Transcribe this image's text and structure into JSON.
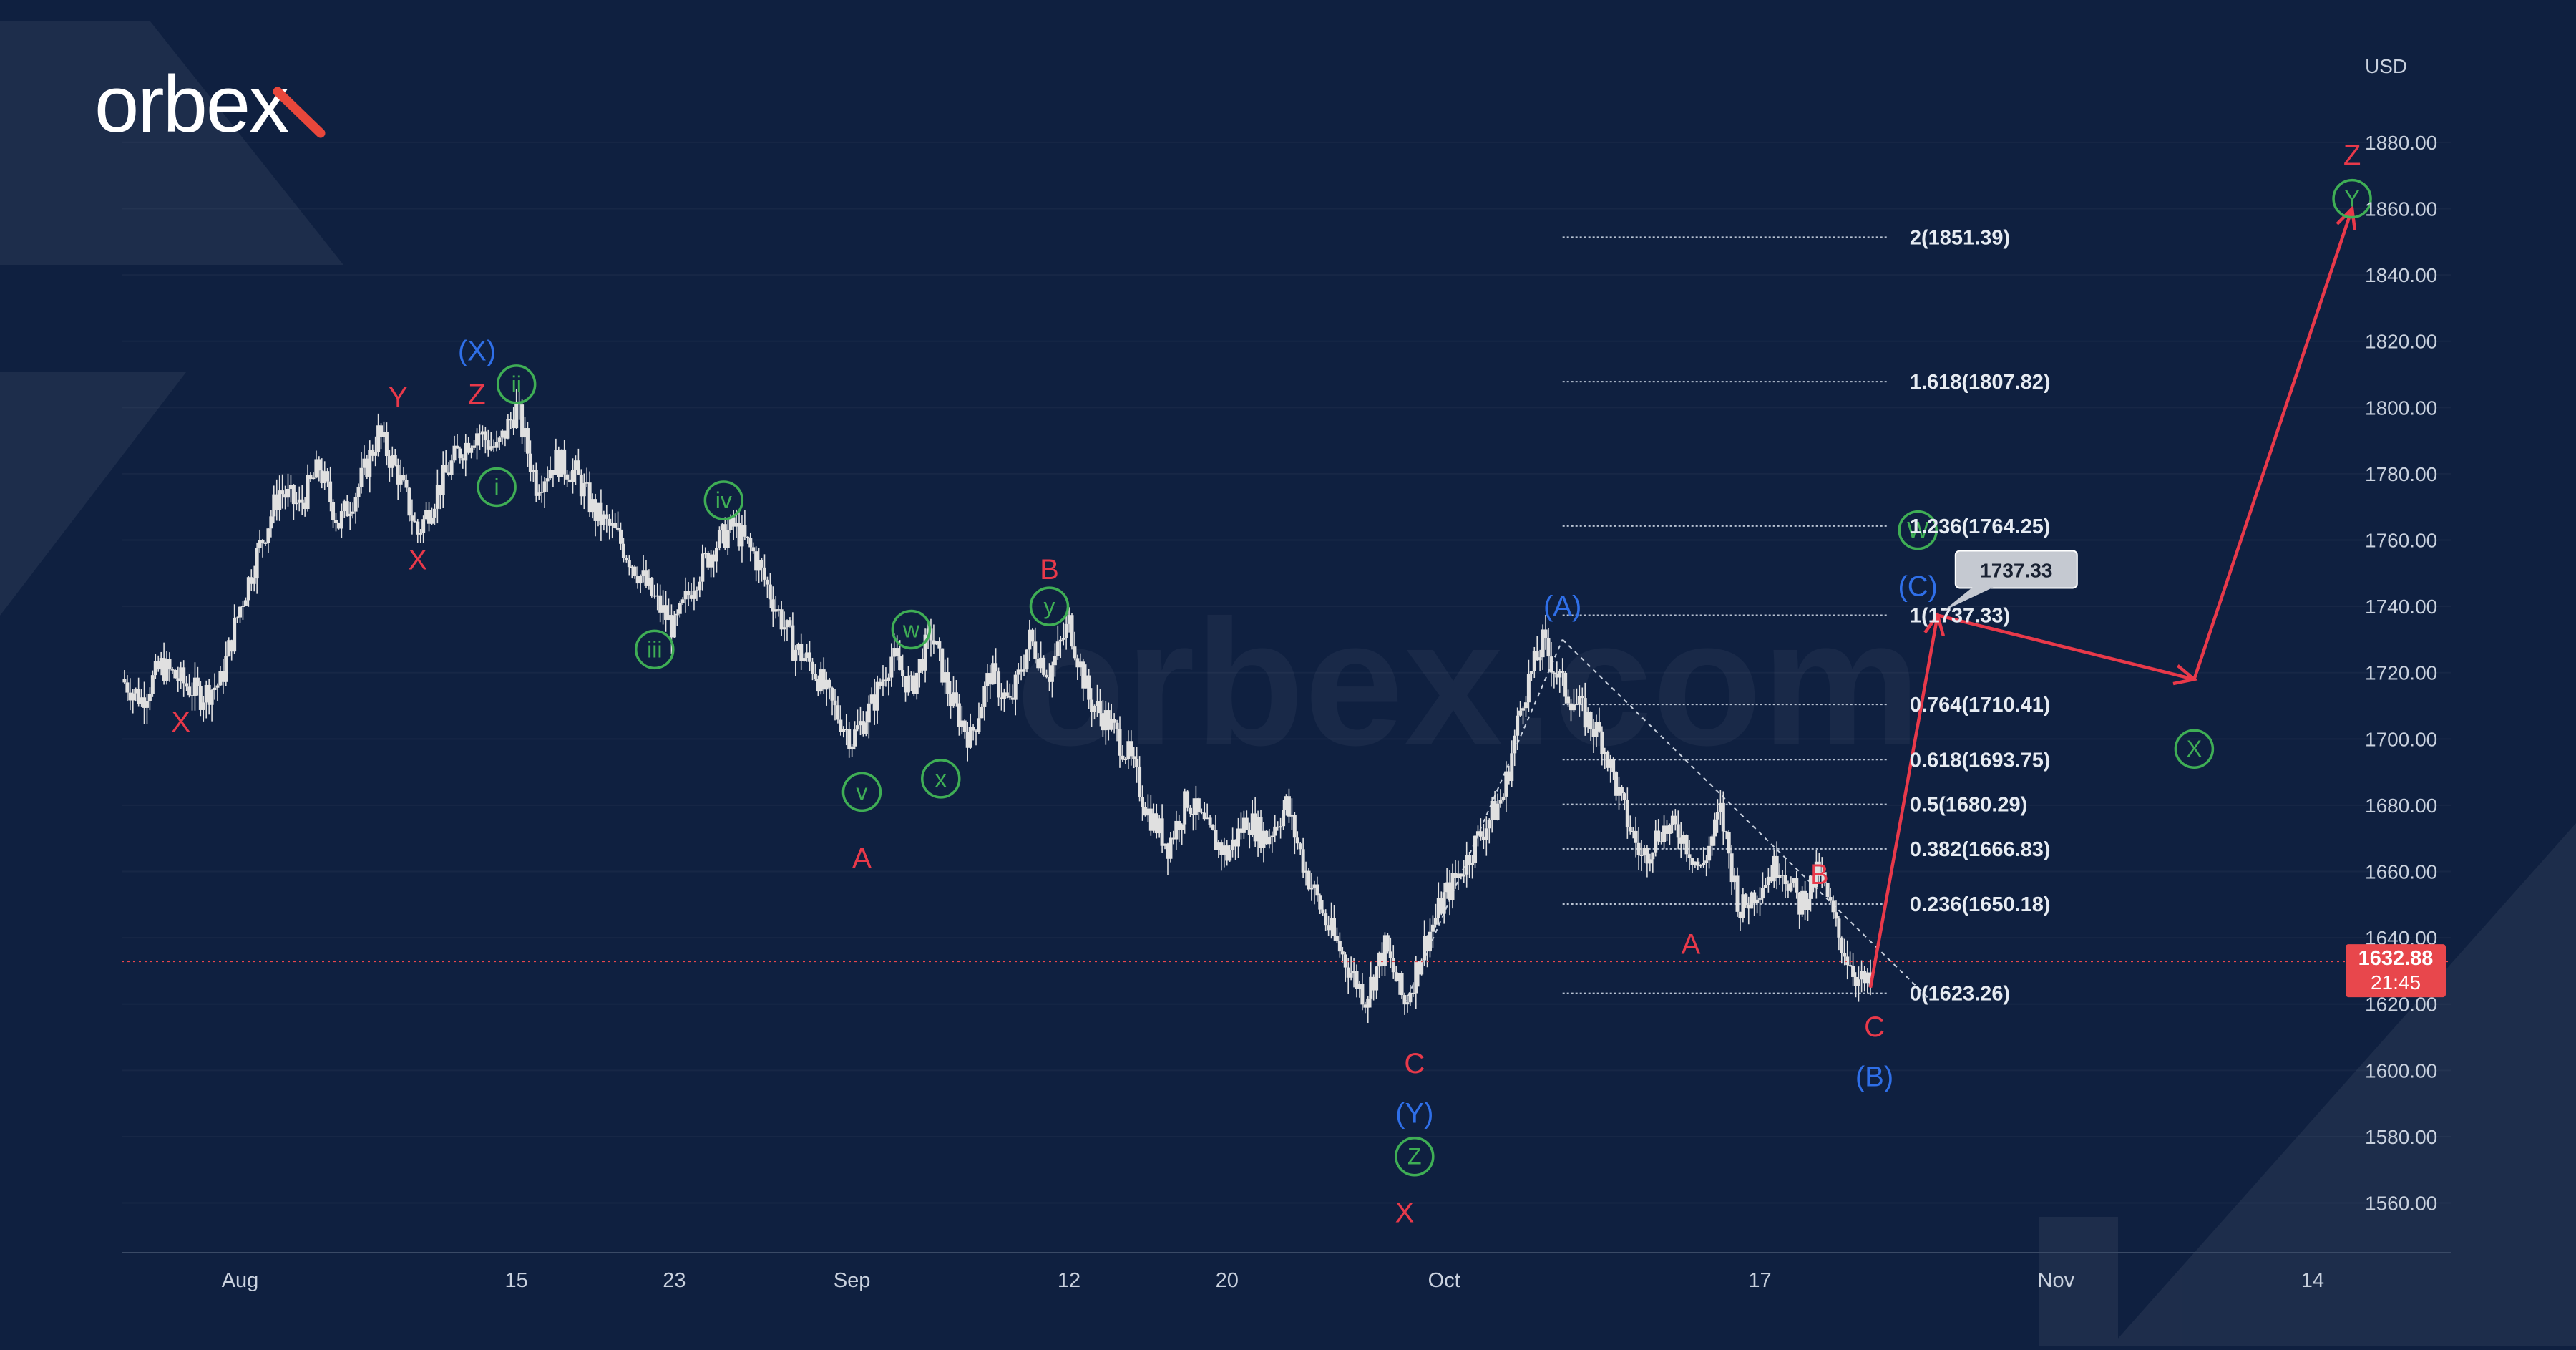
{
  "brand": {
    "logo_text": "orbex",
    "watermark_text": "orbex.com",
    "accent_color": "#e8473b"
  },
  "colors": {
    "background": "#0f2040",
    "candle": "#e0e0e0",
    "wave_red": "#e8394a",
    "wave_green": "#3fae55",
    "wave_blue": "#2f6fe8",
    "projection": "#e8394a",
    "fib_line": "#b8c2d2",
    "price_tag": "#e8474c"
  },
  "chart_data": {
    "type": "candlestick",
    "title": "",
    "currency_label": "USD",
    "y_tick_labels": [
      "1560.00",
      "1580.00",
      "1600.00",
      "1620.00",
      "1640.00",
      "1660.00",
      "1680.00",
      "1700.00",
      "1720.00",
      "1740.00",
      "1760.00",
      "1780.00",
      "1800.00",
      "1820.00",
      "1840.00",
      "1860.00",
      "1880.00"
    ],
    "ylim": [
      1545,
      1910
    ],
    "x_tick_labels": [
      {
        "label": "Aug",
        "day": 1
      },
      {
        "label": "15",
        "day": 15
      },
      {
        "label": "23",
        "day": 23
      },
      {
        "label": "Sep",
        "day": 32
      },
      {
        "label": "12",
        "day": 43
      },
      {
        "label": "20",
        "day": 51
      },
      {
        "label": "Oct",
        "day": 62
      },
      {
        "label": "17",
        "day": 78
      },
      {
        "label": "Nov",
        "day": 93
      },
      {
        "label": "14",
        "day": 106
      }
    ],
    "xlim": [
      -5,
      113
    ],
    "current_price": {
      "value": 1632.88,
      "label": "1632.88",
      "countdown": "21:45"
    },
    "price_path": [
      [
        -5,
        1718
      ],
      [
        -4,
        1712
      ],
      [
        -3,
        1722
      ],
      [
        -1,
        1713
      ],
      [
        0,
        1717
      ],
      [
        1,
        1740
      ],
      [
        2,
        1758
      ],
      [
        3,
        1775
      ],
      [
        4,
        1770
      ],
      [
        5,
        1782
      ],
      [
        6,
        1765
      ],
      [
        7,
        1776
      ],
      [
        8,
        1792
      ],
      [
        9,
        1780
      ],
      [
        10,
        1762
      ],
      [
        11,
        1775
      ],
      [
        12,
        1786
      ],
      [
        13,
        1793
      ],
      [
        14,
        1787
      ],
      [
        15,
        1800
      ],
      [
        16,
        1777
      ],
      [
        17,
        1784
      ],
      [
        18,
        1780
      ],
      [
        19,
        1768
      ],
      [
        20,
        1762
      ],
      [
        21,
        1752
      ],
      [
        22,
        1742
      ],
      [
        23,
        1733
      ],
      [
        24,
        1748
      ],
      [
        25,
        1758
      ],
      [
        26,
        1764
      ],
      [
        27,
        1756
      ],
      [
        28,
        1742
      ],
      [
        29,
        1728
      ],
      [
        30,
        1722
      ],
      [
        31,
        1710
      ],
      [
        32,
        1700
      ],
      [
        33,
        1710
      ],
      [
        34,
        1725
      ],
      [
        35,
        1715
      ],
      [
        36,
        1732
      ],
      [
        37,
        1712
      ],
      [
        38,
        1700
      ],
      [
        39,
        1720
      ],
      [
        40,
        1710
      ],
      [
        41,
        1730
      ],
      [
        42,
        1720
      ],
      [
        43,
        1735
      ],
      [
        44,
        1712
      ],
      [
        45,
        1705
      ],
      [
        46,
        1695
      ],
      [
        47,
        1678
      ],
      [
        48,
        1668
      ],
      [
        49,
        1682
      ],
      [
        50,
        1672
      ],
      [
        51,
        1665
      ],
      [
        52,
        1676
      ],
      [
        53,
        1670
      ],
      [
        54,
        1680
      ],
      [
        55,
        1660
      ],
      [
        56,
        1645
      ],
      [
        57,
        1633
      ],
      [
        58,
        1622
      ],
      [
        59,
        1637
      ],
      [
        60,
        1620
      ],
      [
        61,
        1638
      ],
      [
        62,
        1652
      ],
      [
        63,
        1662
      ],
      [
        64,
        1673
      ],
      [
        65,
        1683
      ],
      [
        66,
        1713
      ],
      [
        67,
        1729
      ],
      [
        68,
        1716
      ],
      [
        69,
        1708
      ],
      [
        70,
        1700
      ],
      [
        71,
        1680
      ],
      [
        72,
        1664
      ],
      [
        73,
        1673
      ],
      [
        74,
        1672
      ],
      [
        75,
        1660
      ],
      [
        76,
        1678
      ],
      [
        77,
        1648
      ],
      [
        78,
        1656
      ],
      [
        79,
        1663
      ],
      [
        80,
        1650
      ],
      [
        81,
        1660
      ],
      [
        82,
        1640
      ],
      [
        83,
        1627
      ],
      [
        83.6,
        1625
      ]
    ],
    "fibonacci": {
      "x_start": 68,
      "x_end": 84.5,
      "levels": [
        {
          "label": "2(1851.39)",
          "ratio": 2,
          "price": 1851.39
        },
        {
          "label": "1.618(1807.82)",
          "ratio": 1.618,
          "price": 1807.82
        },
        {
          "label": "1.236(1764.25)",
          "ratio": 1.236,
          "price": 1764.25
        },
        {
          "label": "1(1737.33)",
          "ratio": 1,
          "price": 1737.33
        },
        {
          "label": "0.764(1710.41)",
          "ratio": 0.764,
          "price": 1710.41
        },
        {
          "label": "0.618(1693.75)",
          "ratio": 0.618,
          "price": 1693.75
        },
        {
          "label": "0.5(1680.29)",
          "ratio": 0.5,
          "price": 1680.29
        },
        {
          "label": "0.382(1666.83)",
          "ratio": 0.382,
          "price": 1666.83
        },
        {
          "label": "0.236(1650.18)",
          "ratio": 0.236,
          "price": 1650.18
        },
        {
          "label": "0(1623.26)",
          "ratio": 0,
          "price": 1623.26
        }
      ]
    },
    "target_tag": {
      "label": "1737.33",
      "day": 87,
      "price": 1737.33
    },
    "projection_path": [
      [
        83.6,
        1625
      ],
      [
        87,
        1737.33
      ],
      [
        100,
        1718
      ],
      [
        108,
        1860
      ]
    ],
    "dotted_lines": [
      {
        "from": [
          60,
          1620
        ],
        "to": [
          68,
          1730
        ]
      },
      {
        "from": [
          68,
          1730
        ],
        "to": [
          86.5,
          1622
        ]
      }
    ],
    "wave_labels": [
      {
        "text": "X",
        "day": -2,
        "price": 1705,
        "style": "red"
      },
      {
        "text": "Y",
        "day": 9,
        "price": 1803,
        "style": "red"
      },
      {
        "text": "X",
        "day": 10,
        "price": 1754,
        "style": "red"
      },
      {
        "text": "Z",
        "day": 13,
        "price": 1804,
        "style": "red"
      },
      {
        "text": "(X)",
        "day": 13,
        "price": 1817,
        "style": "blue"
      },
      {
        "text": "ii",
        "day": 15,
        "price": 1807,
        "style": "green-circle"
      },
      {
        "text": "i",
        "day": 14,
        "price": 1776,
        "style": "green-circle"
      },
      {
        "text": "iii",
        "day": 22,
        "price": 1727,
        "style": "green-circle"
      },
      {
        "text": "iv",
        "day": 25.5,
        "price": 1772,
        "style": "green-circle"
      },
      {
        "text": "v",
        "day": 32.5,
        "price": 1684,
        "style": "green-circle"
      },
      {
        "text": "A",
        "day": 32.5,
        "price": 1664,
        "style": "red"
      },
      {
        "text": "w",
        "day": 35,
        "price": 1733,
        "style": "green-circle"
      },
      {
        "text": "x",
        "day": 36.5,
        "price": 1688,
        "style": "green-circle"
      },
      {
        "text": "y",
        "day": 42,
        "price": 1740,
        "style": "green-circle"
      },
      {
        "text": "B",
        "day": 42,
        "price": 1751,
        "style": "red"
      },
      {
        "text": "C",
        "day": 60.5,
        "price": 1602,
        "style": "red"
      },
      {
        "text": "(Y)",
        "day": 60.5,
        "price": 1587,
        "style": "blue"
      },
      {
        "text": "Z",
        "day": 60.5,
        "price": 1574,
        "style": "green-circle"
      },
      {
        "text": "X",
        "day": 60,
        "price": 1557,
        "style": "red"
      },
      {
        "text": "(A)",
        "day": 68,
        "price": 1740,
        "style": "blue"
      },
      {
        "text": "A",
        "day": 74.5,
        "price": 1638,
        "style": "red"
      },
      {
        "text": "B",
        "day": 81,
        "price": 1659,
        "style": "red"
      },
      {
        "text": "C",
        "day": 83.8,
        "price": 1613,
        "style": "red"
      },
      {
        "text": "(B)",
        "day": 83.8,
        "price": 1598,
        "style": "blue"
      },
      {
        "text": "(C)",
        "day": 86,
        "price": 1746,
        "style": "blue"
      },
      {
        "text": "W",
        "day": 86,
        "price": 1763,
        "style": "green-circle"
      },
      {
        "text": "X",
        "day": 100,
        "price": 1697,
        "style": "green-circle"
      },
      {
        "text": "Z",
        "day": 108,
        "price": 1876,
        "style": "red"
      },
      {
        "text": "Y",
        "day": 108,
        "price": 1863,
        "style": "green-circle"
      }
    ]
  }
}
